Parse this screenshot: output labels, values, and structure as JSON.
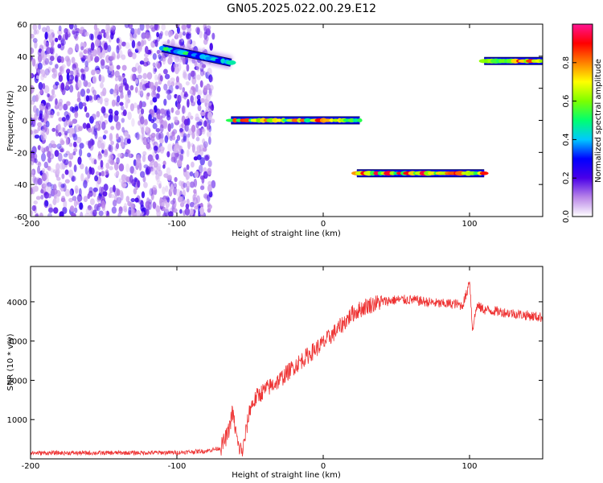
{
  "title": "GN05.2025.022.00.29.E12",
  "chart_data": [
    {
      "type": "heatmap",
      "xlabel": "Height of straight line (km)",
      "ylabel": "Frequency (Hz)",
      "xlim": [
        -200,
        150
      ],
      "ylim": [
        -60,
        60
      ],
      "xticks": [
        -200,
        -100,
        0,
        100
      ],
      "yticks": [
        -60,
        -40,
        -20,
        0,
        20,
        40,
        60
      ],
      "colorbar": {
        "label": "Normalized spectral amplitude",
        "range": [
          0,
          1
        ],
        "ticks": [
          0.0,
          0.2,
          0.4,
          0.6,
          0.8
        ],
        "colors": [
          "#ffffff",
          "#b985e8",
          "#4a00e8",
          "#0000ff",
          "#00c8ff",
          "#00ff70",
          "#7cff00",
          "#ffff00",
          "#ff8000",
          "#ff0000",
          "#ff1493"
        ]
      },
      "noise_region": {
        "x": [
          -200,
          -75
        ],
        "y": [
          -60,
          60
        ],
        "amplitude": [
          0.05,
          0.25
        ]
      },
      "segments": [
        {
          "x": [
            -110,
            -63
          ],
          "y": [
            45,
            36
          ],
          "amplitude": 0.55
        },
        {
          "x": [
            -63,
            25
          ],
          "y": [
            0,
            0
          ],
          "amplitude": 0.9
        },
        {
          "x": [
            23,
            110
          ],
          "y": [
            -33,
            -33
          ],
          "amplitude": 0.95
        },
        {
          "x": [
            110,
            150
          ],
          "y": [
            37,
            37
          ],
          "amplitude": 0.95
        }
      ]
    },
    {
      "type": "line",
      "xlabel": "Height of straight line (km)",
      "ylabel": "SNR (10 * v/v)",
      "xlim": [
        -200,
        150
      ],
      "ylim": [
        0,
        4900
      ],
      "xticks": [
        -200,
        -100,
        0,
        100
      ],
      "yticks": [
        1000,
        2000,
        3000,
        4000
      ],
      "color": "#ee3333",
      "series": [
        {
          "x": [
            -200,
            -150,
            -100,
            -80,
            -70,
            -65,
            -62,
            -58,
            -55,
            -50,
            -45,
            -40,
            -30,
            -20,
            -10,
            0,
            10,
            20,
            30,
            40,
            50,
            60,
            70,
            80,
            90,
            95,
            98,
            100,
            102,
            105,
            110,
            120,
            130,
            140,
            150
          ],
          "values": [
            150,
            150,
            160,
            200,
            280,
            650,
            1200,
            300,
            200,
            1300,
            1600,
            1750,
            2000,
            2350,
            2650,
            2950,
            3300,
            3700,
            3900,
            4000,
            4050,
            4050,
            4000,
            3950,
            3950,
            3900,
            4200,
            4600,
            3300,
            3900,
            3800,
            3750,
            3700,
            3650,
            3600
          ]
        }
      ]
    }
  ]
}
